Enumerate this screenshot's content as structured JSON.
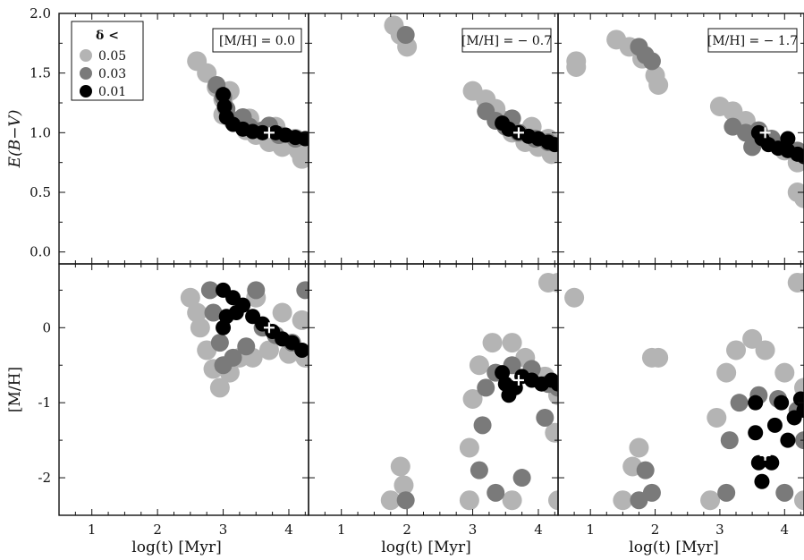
{
  "figure": {
    "legend": {
      "title": "δ <",
      "entries": [
        {
          "label": "0.05",
          "color": "#b4b4b4"
        },
        {
          "label": "0.03",
          "color": "#7a7a7a"
        },
        {
          "label": "0.01",
          "color": "#000000"
        }
      ]
    }
  },
  "chart_data": [
    {
      "type": "scatter",
      "panel": "top-left",
      "annotation": "[M/H] = 0.0",
      "xlabel": "",
      "ylabel": "E(B−V)",
      "xlim": [
        0.5,
        4.3
      ],
      "ylim": [
        -0.1,
        2.0
      ],
      "xticks": [
        "1",
        "2",
        "3",
        "4"
      ],
      "yticks": [
        "0.0",
        "0.5",
        "1.0",
        "1.5",
        "2.0"
      ],
      "marker": {
        "x": 3.7,
        "y": 1.0
      },
      "series": [
        {
          "name": "0.05",
          "color": "#b4b4b4",
          "points": [
            [
              2.6,
              1.6
            ],
            [
              2.75,
              1.5
            ],
            [
              2.9,
              1.38
            ],
            [
              3.0,
              1.28
            ],
            [
              3.0,
              1.15
            ],
            [
              3.15,
              1.1
            ],
            [
              3.35,
              1.02
            ],
            [
              3.5,
              0.98
            ],
            [
              3.7,
              0.92
            ],
            [
              3.9,
              0.88
            ],
            [
              4.15,
              0.85
            ],
            [
              4.2,
              0.78
            ],
            [
              3.1,
              1.35
            ],
            [
              3.4,
              1.12
            ],
            [
              3.8,
              1.05
            ],
            [
              4.1,
              0.95
            ]
          ]
        },
        {
          "name": "0.03",
          "color": "#7a7a7a",
          "points": [
            [
              2.9,
              1.4
            ],
            [
              3.0,
              1.3
            ],
            [
              3.05,
              1.2
            ],
            [
              3.2,
              1.1
            ],
            [
              3.4,
              1.05
            ],
            [
              3.6,
              1.02
            ],
            [
              3.85,
              0.98
            ],
            [
              4.1,
              0.95
            ],
            [
              3.3,
              1.13
            ],
            [
              3.7,
              1.06
            ]
          ]
        },
        {
          "name": "0.01",
          "color": "#000000",
          "points": [
            [
              3.0,
              1.32
            ],
            [
              3.02,
              1.22
            ],
            [
              3.05,
              1.13
            ],
            [
              3.15,
              1.07
            ],
            [
              3.3,
              1.03
            ],
            [
              3.45,
              1.01
            ],
            [
              3.6,
              1.0
            ],
            [
              3.8,
              1.0
            ],
            [
              3.95,
              0.98
            ],
            [
              4.1,
              0.96
            ],
            [
              4.25,
              0.95
            ]
          ]
        }
      ]
    },
    {
      "type": "scatter",
      "panel": "top-middle",
      "annotation": "[M/H] = − 0.7",
      "xlim": [
        0.5,
        4.3
      ],
      "ylim": [
        -0.1,
        2.0
      ],
      "xticks": [
        "1",
        "2",
        "3",
        "4"
      ],
      "marker": {
        "x": 3.7,
        "y": 1.0
      },
      "series": [
        {
          "name": "0.05",
          "color": "#b4b4b4",
          "points": [
            [
              1.8,
              1.9
            ],
            [
              1.9,
              1.82
            ],
            [
              2.0,
              1.72
            ],
            [
              3.0,
              1.35
            ],
            [
              3.2,
              1.28
            ],
            [
              3.35,
              1.2
            ],
            [
              3.5,
              1.1
            ],
            [
              3.6,
              1.0
            ],
            [
              3.8,
              0.92
            ],
            [
              4.0,
              0.88
            ],
            [
              4.2,
              0.82
            ],
            [
              3.9,
              1.05
            ],
            [
              4.15,
              0.95
            ]
          ]
        },
        {
          "name": "0.03",
          "color": "#7a7a7a",
          "points": [
            [
              1.98,
              1.82
            ],
            [
              3.2,
              1.18
            ],
            [
              3.35,
              1.1
            ],
            [
              3.5,
              1.05
            ],
            [
              3.7,
              1.0
            ],
            [
              3.95,
              0.95
            ],
            [
              4.15,
              0.92
            ],
            [
              3.6,
              1.12
            ]
          ]
        },
        {
          "name": "0.01",
          "color": "#000000",
          "points": [
            [
              3.45,
              1.08
            ],
            [
              3.55,
              1.03
            ],
            [
              3.7,
              1.0
            ],
            [
              3.85,
              0.97
            ],
            [
              4.0,
              0.95
            ],
            [
              4.15,
              0.92
            ],
            [
              4.25,
              0.9
            ]
          ]
        }
      ]
    },
    {
      "type": "scatter",
      "panel": "top-right",
      "annotation": "[M/H] = − 1.7",
      "xlim": [
        0.5,
        4.3
      ],
      "ylim": [
        -0.1,
        2.0
      ],
      "xticks": [
        "1",
        "2",
        "3",
        "4"
      ],
      "marker": {
        "x": 3.7,
        "y": 1.0
      },
      "series": [
        {
          "name": "0.05",
          "color": "#b4b4b4",
          "points": [
            [
              0.78,
              1.6
            ],
            [
              0.78,
              1.55
            ],
            [
              1.4,
              1.78
            ],
            [
              1.6,
              1.72
            ],
            [
              1.8,
              1.62
            ],
            [
              2.0,
              1.48
            ],
            [
              2.05,
              1.4
            ],
            [
              3.0,
              1.22
            ],
            [
              3.2,
              1.18
            ],
            [
              3.4,
              1.1
            ],
            [
              3.6,
              1.0
            ],
            [
              3.8,
              0.92
            ],
            [
              4.0,
              0.85
            ],
            [
              4.2,
              0.75
            ],
            [
              4.2,
              0.5
            ],
            [
              4.3,
              0.45
            ]
          ]
        },
        {
          "name": "0.03",
          "color": "#7a7a7a",
          "points": [
            [
              1.75,
              1.72
            ],
            [
              1.85,
              1.65
            ],
            [
              1.95,
              1.6
            ],
            [
              3.2,
              1.05
            ],
            [
              3.4,
              1.0
            ],
            [
              3.6,
              1.02
            ],
            [
              3.8,
              0.95
            ],
            [
              4.0,
              0.9
            ],
            [
              4.2,
              0.85
            ],
            [
              3.5,
              0.88
            ]
          ]
        },
        {
          "name": "0.01",
          "color": "#000000",
          "points": [
            [
              3.6,
              1.0
            ],
            [
              3.65,
              0.95
            ],
            [
              3.75,
              0.9
            ],
            [
              3.9,
              0.87
            ],
            [
              4.05,
              0.85
            ],
            [
              4.05,
              0.95
            ],
            [
              4.2,
              0.82
            ],
            [
              4.3,
              0.8
            ]
          ]
        }
      ]
    },
    {
      "type": "scatter",
      "panel": "bottom-left",
      "xlabel": "log(t) [Myr]",
      "ylabel": "[M/H]",
      "xlim": [
        0.5,
        4.3
      ],
      "ylim": [
        -2.5,
        0.85
      ],
      "xticks": [
        "1",
        "2",
        "3",
        "4"
      ],
      "yticks": [
        "-2",
        "-1",
        "0"
      ],
      "marker": {
        "x": 3.7,
        "y": 0.0
      },
      "series": [
        {
          "name": "0.05",
          "color": "#b4b4b4",
          "points": [
            [
              2.5,
              0.4
            ],
            [
              2.6,
              0.2
            ],
            [
              2.65,
              0.0
            ],
            [
              2.75,
              -0.3
            ],
            [
              2.85,
              -0.55
            ],
            [
              2.95,
              -0.8
            ],
            [
              3.1,
              -0.6
            ],
            [
              3.25,
              -0.4
            ],
            [
              3.45,
              -0.4
            ],
            [
              3.7,
              -0.3
            ],
            [
              4.0,
              -0.35
            ],
            [
              4.25,
              -0.4
            ],
            [
              3.5,
              0.4
            ],
            [
              3.9,
              0.2
            ],
            [
              4.2,
              0.1
            ]
          ]
        },
        {
          "name": "0.03",
          "color": "#7a7a7a",
          "points": [
            [
              2.8,
              0.5
            ],
            [
              2.85,
              0.2
            ],
            [
              2.95,
              -0.2
            ],
            [
              3.0,
              -0.5
            ],
            [
              3.15,
              -0.4
            ],
            [
              3.35,
              -0.25
            ],
            [
              3.6,
              0.0
            ],
            [
              3.8,
              -0.1
            ],
            [
              4.05,
              -0.2
            ],
            [
              4.25,
              0.5
            ],
            [
              3.5,
              0.5
            ]
          ]
        },
        {
          "name": "0.01",
          "color": "#000000",
          "points": [
            [
              3.0,
              0.5
            ],
            [
              3.15,
              0.4
            ],
            [
              3.3,
              0.3
            ],
            [
              3.45,
              0.15
            ],
            [
              3.6,
              0.05
            ],
            [
              3.75,
              -0.05
            ],
            [
              3.9,
              -0.15
            ],
            [
              4.05,
              -0.2
            ],
            [
              4.2,
              -0.3
            ],
            [
              3.0,
              0.0
            ],
            [
              3.05,
              0.15
            ],
            [
              3.2,
              0.2
            ]
          ]
        }
      ]
    },
    {
      "type": "scatter",
      "panel": "bottom-middle",
      "xlabel": "log(t) [Myr]",
      "xlim": [
        0.5,
        4.3
      ],
      "ylim": [
        -2.5,
        0.85
      ],
      "xticks": [
        "1",
        "2",
        "3",
        "4"
      ],
      "marker": {
        "x": 3.7,
        "y": -0.7
      },
      "series": [
        {
          "name": "0.05",
          "color": "#b4b4b4",
          "points": [
            [
              1.75,
              -2.3
            ],
            [
              1.9,
              -1.85
            ],
            [
              1.95,
              -2.1
            ],
            [
              2.95,
              -2.3
            ],
            [
              2.95,
              -1.6
            ],
            [
              3.0,
              -0.95
            ],
            [
              3.1,
              -0.5
            ],
            [
              3.3,
              -0.2
            ],
            [
              3.6,
              -0.2
            ],
            [
              3.8,
              -0.4
            ],
            [
              4.1,
              -0.65
            ],
            [
              4.3,
              -0.9
            ],
            [
              4.25,
              -1.4
            ],
            [
              4.3,
              -2.3
            ],
            [
              3.6,
              -2.3
            ],
            [
              4.15,
              0.6
            ],
            [
              4.3,
              0.6
            ]
          ]
        },
        {
          "name": "0.03",
          "color": "#7a7a7a",
          "points": [
            [
              1.98,
              -2.3
            ],
            [
              3.1,
              -1.9
            ],
            [
              3.15,
              -1.3
            ],
            [
              3.2,
              -0.8
            ],
            [
              3.35,
              -0.6
            ],
            [
              3.6,
              -0.5
            ],
            [
              3.9,
              -0.55
            ],
            [
              4.15,
              -0.75
            ],
            [
              4.3,
              -0.8
            ],
            [
              4.1,
              -1.2
            ],
            [
              3.75,
              -2.0
            ],
            [
              3.35,
              -2.2
            ]
          ]
        },
        {
          "name": "0.01",
          "color": "#000000",
          "points": [
            [
              3.45,
              -0.6
            ],
            [
              3.5,
              -0.75
            ],
            [
              3.55,
              -0.9
            ],
            [
              3.65,
              -0.8
            ],
            [
              3.75,
              -0.65
            ],
            [
              3.9,
              -0.7
            ],
            [
              4.05,
              -0.75
            ],
            [
              4.2,
              -0.7
            ],
            [
              4.3,
              -0.75
            ]
          ]
        }
      ]
    },
    {
      "type": "scatter",
      "panel": "bottom-right",
      "xlabel": "log(t) [Myr]",
      "xlim": [
        0.5,
        4.3
      ],
      "ylim": [
        -2.5,
        0.85
      ],
      "xticks": [
        "1",
        "2",
        "3",
        "4"
      ],
      "marker": {
        "x": 3.7,
        "y": -1.7
      },
      "series": [
        {
          "name": "0.05",
          "color": "#b4b4b4",
          "points": [
            [
              0.75,
              0.4
            ],
            [
              1.5,
              -2.3
            ],
            [
              1.65,
              -1.85
            ],
            [
              1.75,
              -1.6
            ],
            [
              1.95,
              -0.4
            ],
            [
              2.05,
              -0.4
            ],
            [
              2.85,
              -2.3
            ],
            [
              2.95,
              -1.2
            ],
            [
              3.1,
              -0.6
            ],
            [
              3.25,
              -0.3
            ],
            [
              3.5,
              -0.15
            ],
            [
              3.7,
              -0.3
            ],
            [
              4.0,
              -0.6
            ],
            [
              4.3,
              -0.8
            ],
            [
              4.3,
              -2.3
            ],
            [
              4.2,
              0.6
            ],
            [
              4.3,
              0.6
            ]
          ]
        },
        {
          "name": "0.03",
          "color": "#7a7a7a",
          "points": [
            [
              1.75,
              -2.3
            ],
            [
              1.85,
              -1.9
            ],
            [
              1.95,
              -2.2
            ],
            [
              3.1,
              -2.2
            ],
            [
              3.15,
              -1.5
            ],
            [
              3.3,
              -1.0
            ],
            [
              3.6,
              -0.9
            ],
            [
              3.9,
              -0.95
            ],
            [
              4.2,
              -1.1
            ],
            [
              4.3,
              -1.5
            ],
            [
              4.0,
              -2.2
            ]
          ]
        },
        {
          "name": "0.01",
          "color": "#000000",
          "points": [
            [
              3.55,
              -1.0
            ],
            [
              3.55,
              -1.4
            ],
            [
              3.6,
              -1.8
            ],
            [
              3.65,
              -2.05
            ],
            [
              3.8,
              -1.8
            ],
            [
              3.85,
              -1.3
            ],
            [
              3.95,
              -1.0
            ],
            [
              4.05,
              -1.5
            ],
            [
              4.15,
              -1.2
            ],
            [
              4.25,
              -0.95
            ],
            [
              4.3,
              -1.1
            ]
          ]
        }
      ]
    }
  ]
}
